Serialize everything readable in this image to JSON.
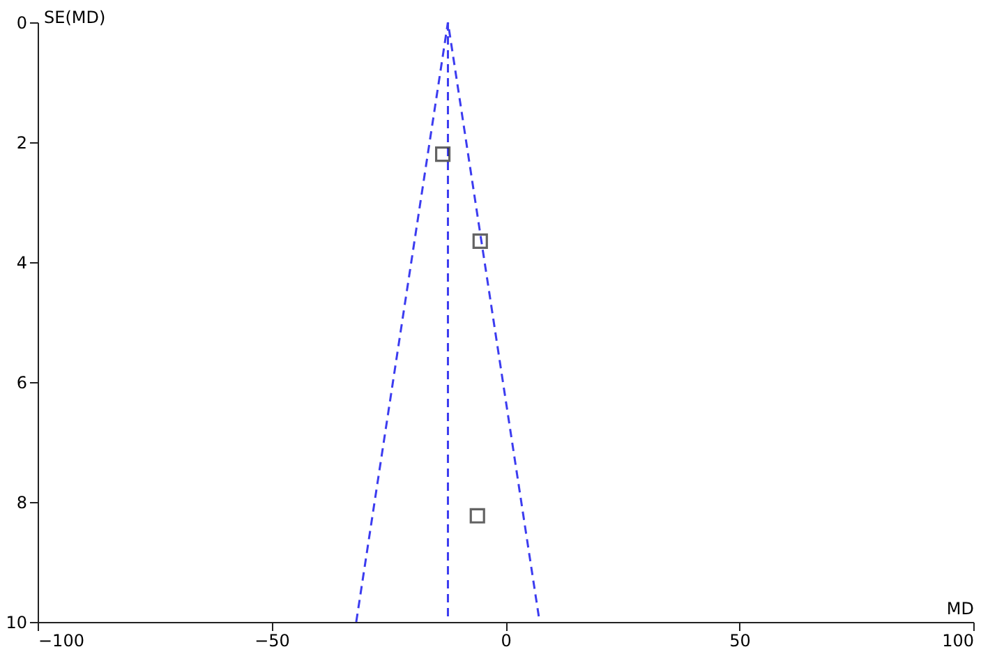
{
  "chart_data": {
    "type": "scatter",
    "xlabel": "MD",
    "ylabel": "SE(MD)",
    "xlim": [
      -100,
      100
    ],
    "xticks": [
      -100,
      -50,
      0,
      50,
      100
    ],
    "ylim": [
      10,
      0
    ],
    "yticks": [
      0,
      2,
      4,
      6,
      8,
      10
    ],
    "grid": false,
    "series": [
      {
        "marker": "square",
        "color": "#222222",
        "x": [
          -13.4,
          -5.4,
          -6.0
        ],
        "values": [
          2.2,
          3.65,
          8.23
        ]
      },
      {
        "type": "line",
        "marker": "none",
        "color": "#3c3cf0",
        "line_style": "dashed",
        "x": [
          -31.9,
          -12.3,
          7.3
        ],
        "values": [
          10,
          0,
          10
        ]
      }
    ],
    "ref_lines": [
      {
        "axis": "x",
        "value": -12.3,
        "color": "#3c3cf0",
        "line_style": "dashed"
      }
    ]
  }
}
